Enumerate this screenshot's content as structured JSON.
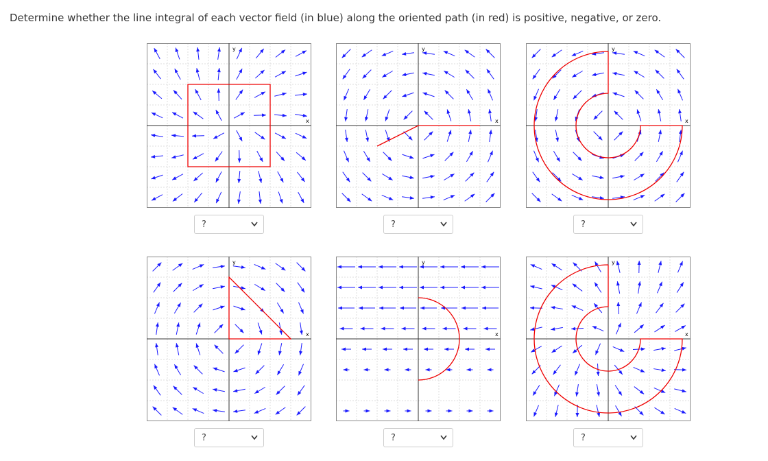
{
  "instruction": "Determine whether the line integral of each vector field (in blue) along the oriented path (in red) is positive, negative, or zero.",
  "panels": [
    {
      "x_label": "x",
      "y_label": "y",
      "answer": "?"
    },
    {
      "x_label": "x",
      "y_label": "y",
      "answer": "?"
    },
    {
      "x_label": "x",
      "y_label": "y",
      "answer": "?"
    },
    {
      "x_label": "x",
      "y_label": "y",
      "answer": "?"
    },
    {
      "x_label": "x",
      "y_label": "y",
      "answer": "?"
    },
    {
      "x_label": "x",
      "y_label": "y",
      "answer": "?"
    }
  ]
}
